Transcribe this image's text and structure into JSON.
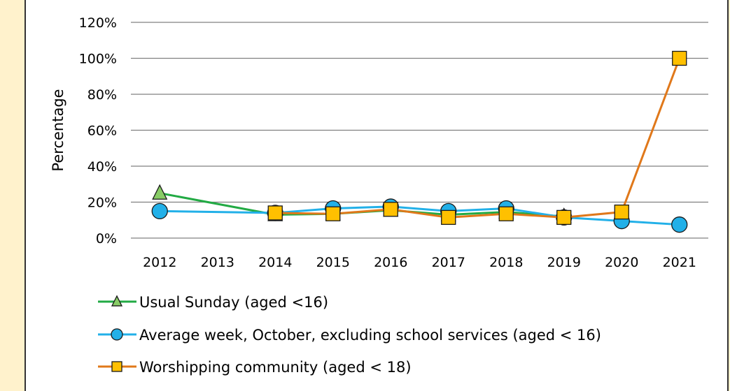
{
  "chart_data": {
    "type": "line",
    "title": "",
    "xlabel": "",
    "ylabel": "Percentage",
    "ylim": [
      0,
      1.2
    ],
    "y_tick_labels": [
      "0%",
      "20%",
      "40%",
      "60%",
      "80%",
      "100%",
      "120%"
    ],
    "y_ticks": [
      0,
      0.2,
      0.4,
      0.6,
      0.8,
      1.0,
      1.2
    ],
    "categories": [
      "2012",
      "2013",
      "2014",
      "2015",
      "2016",
      "2017",
      "2018",
      "2019",
      "2020",
      "2021"
    ],
    "grid": true,
    "legend_position": "bottom",
    "series": [
      {
        "name": "Usual Sunday (aged <16)",
        "color": "#22aa44",
        "marker": "triangle",
        "marker_fill": "#88cc66",
        "values": [
          0.25,
          null,
          0.13,
          0.135,
          0.155,
          0.13,
          0.145,
          0.12,
          null,
          null
        ]
      },
      {
        "name": "Average week, October, excluding school services (aged < 16)",
        "color": "#22b0e8",
        "marker": "circle",
        "marker_fill": "#22b0e8",
        "values": [
          0.15,
          null,
          0.14,
          0.165,
          0.175,
          0.15,
          0.165,
          0.115,
          0.095,
          0.075
        ]
      },
      {
        "name": "Worshipping community (aged < 18)",
        "color": "#e0781a",
        "marker": "square",
        "marker_fill": "#ffc000",
        "values": [
          null,
          null,
          0.14,
          0.135,
          0.16,
          0.115,
          0.135,
          0.115,
          0.145,
          1.0
        ]
      }
    ]
  },
  "colors": {
    "page_background": "#fff2cc",
    "panel_background": "#ffffff",
    "gridline": "#808080"
  }
}
